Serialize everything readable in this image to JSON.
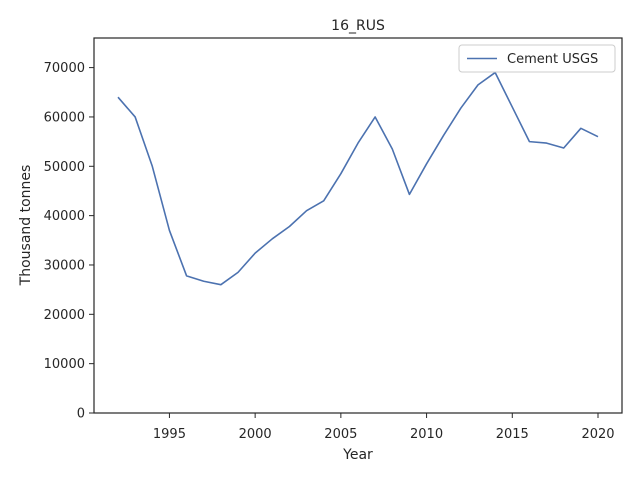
{
  "chart_data": {
    "type": "line",
    "title": "16_RUS",
    "xlabel": "Year",
    "ylabel": "Thousand tonnes",
    "xlim": [
      1990.6,
      2021.4
    ],
    "ylim": [
      0,
      76000
    ],
    "xticks": [
      1995,
      2000,
      2005,
      2010,
      2015,
      2020
    ],
    "yticks": [
      0,
      10000,
      20000,
      30000,
      40000,
      50000,
      60000,
      70000
    ],
    "grid": false,
    "legend_position": "top-right",
    "x": [
      1992,
      1993,
      1994,
      1995,
      1996,
      1997,
      1998,
      1999,
      2000,
      2001,
      2002,
      2003,
      2004,
      2005,
      2006,
      2007,
      2008,
      2009,
      2010,
      2011,
      2012,
      2013,
      2014,
      2015,
      2016,
      2017,
      2018,
      2019,
      2020
    ],
    "series": [
      {
        "name": "Cement USGS",
        "color": "#4c72b0",
        "values": [
          64000,
          60000,
          50000,
          37000,
          27800,
          26700,
          26000,
          28500,
          32400,
          35300,
          37800,
          41000,
          43000,
          48500,
          54700,
          60000,
          53500,
          44300,
          50500,
          56300,
          61800,
          66500,
          69000,
          62000,
          55000,
          54700,
          53700,
          57700,
          56000
        ]
      }
    ]
  }
}
